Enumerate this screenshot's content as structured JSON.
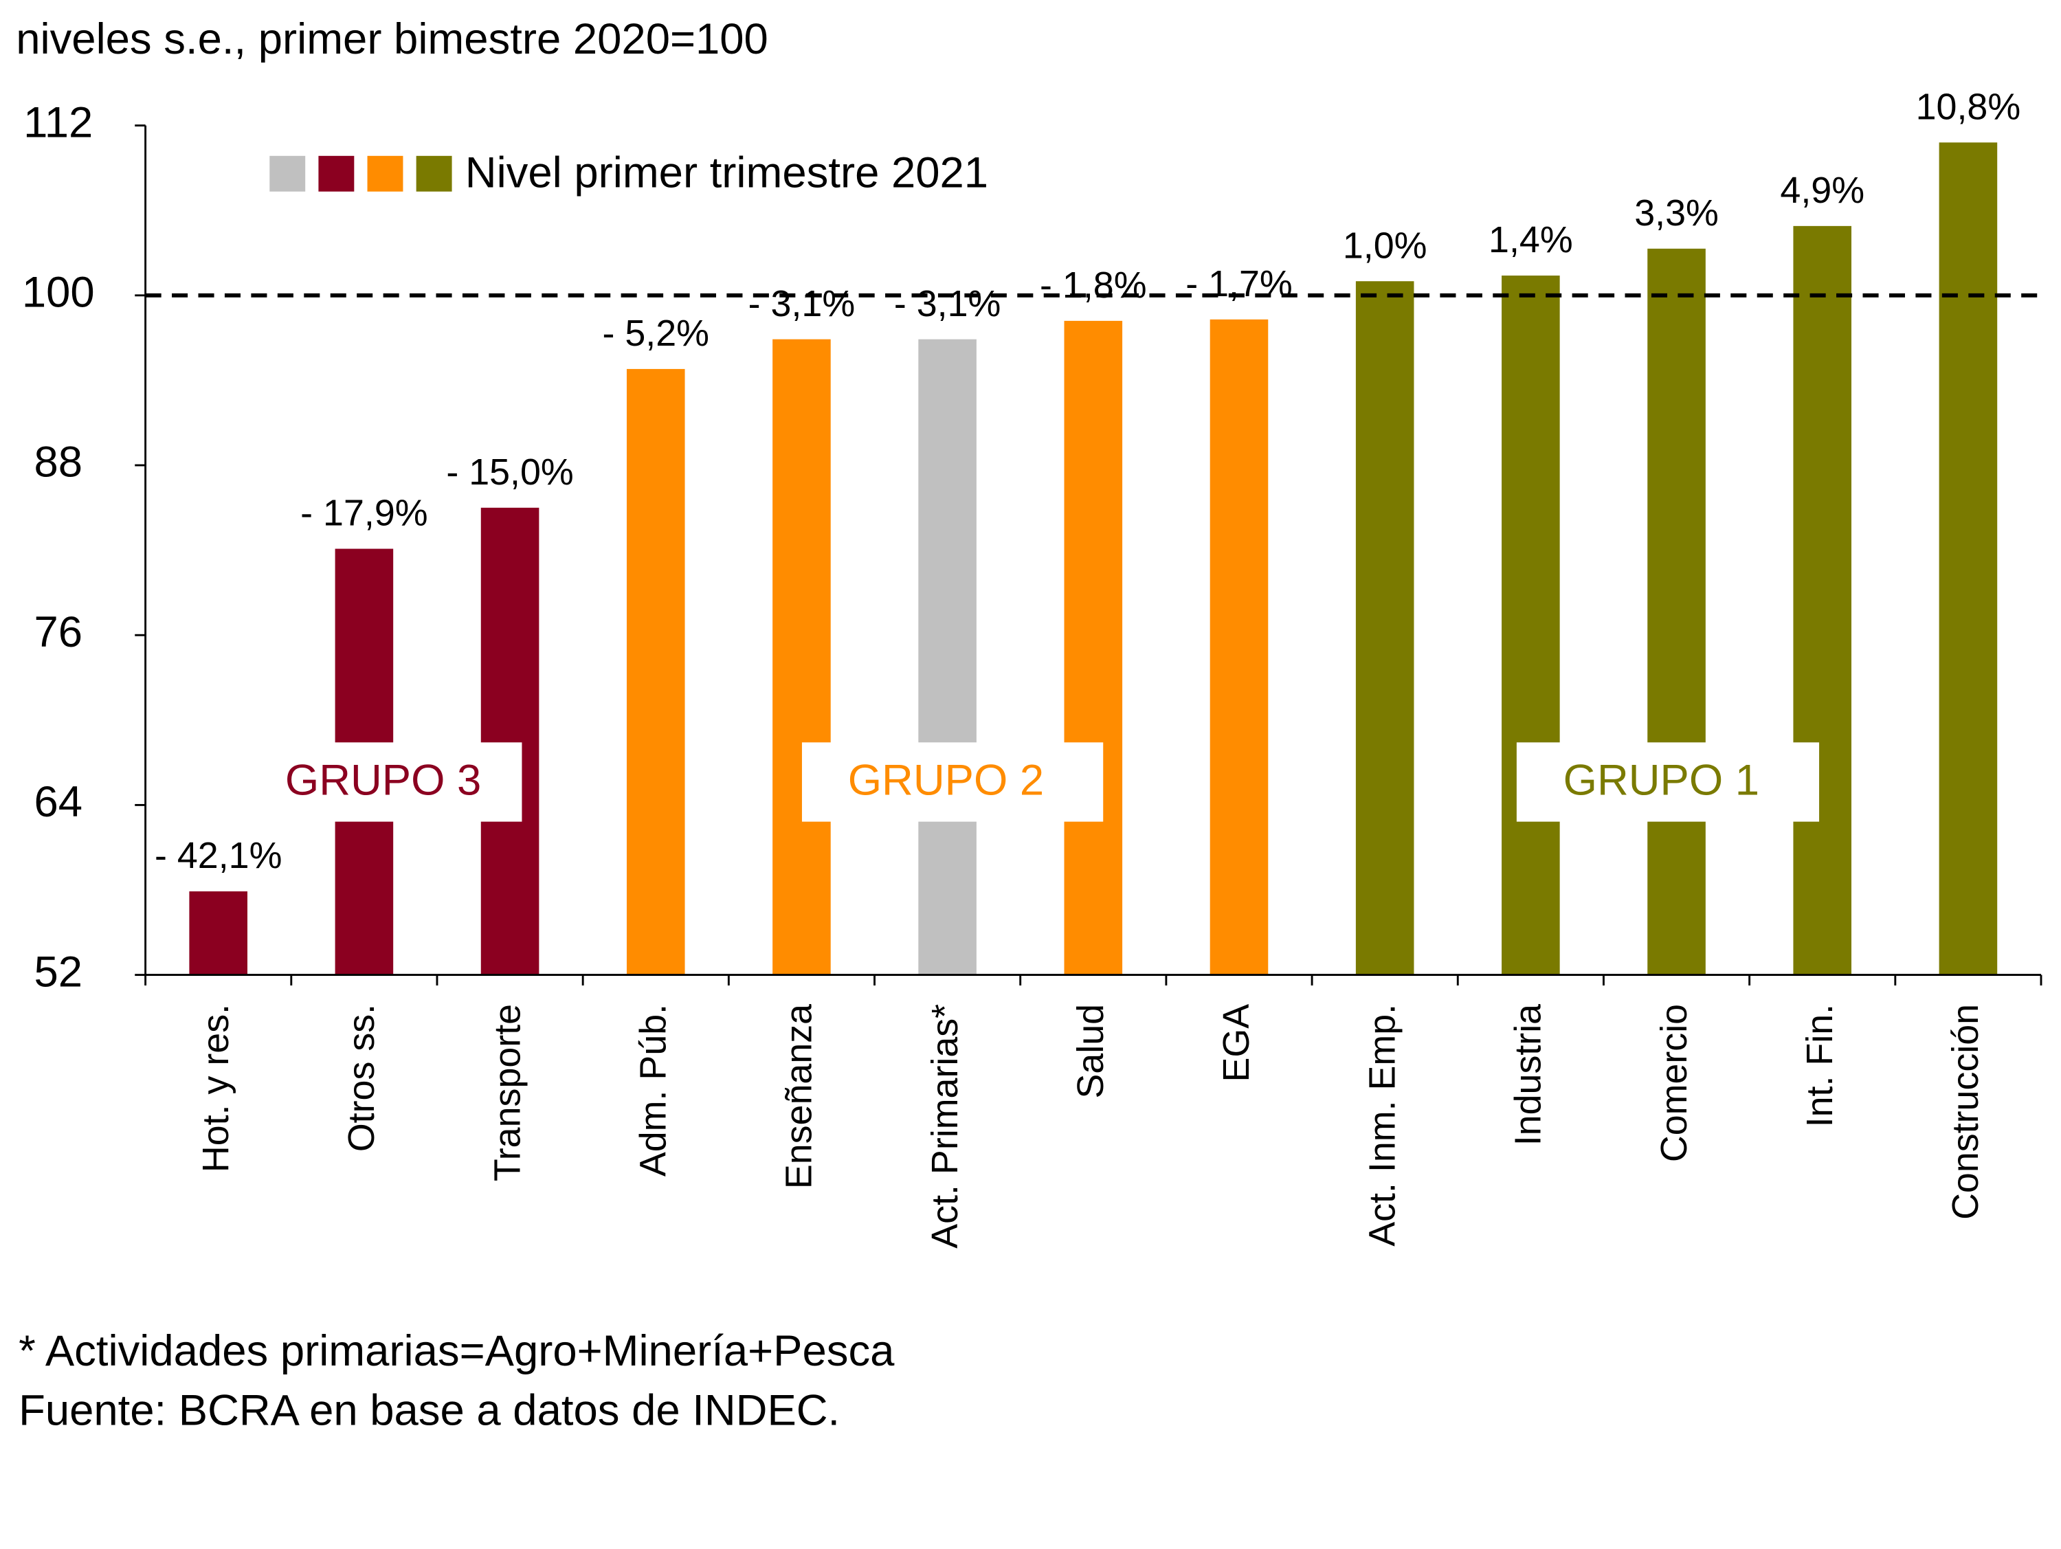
{
  "chart_data": {
    "type": "bar",
    "subtitle": "niveles s.e., primer bimestre 2020=100",
    "legend_label": "Nivel primer trimestre 2021",
    "legend_colors": [
      "#c0c0c0",
      "#8b0020",
      "#ff8c00",
      "#7a7a00"
    ],
    "categories": [
      "Hot. y res.",
      "Otros ss.",
      "Transporte",
      "Adm. Púb.",
      "Enseñanza",
      "Act. Primarias*",
      "Salud",
      "EGA",
      "Act. Inm. Emp.",
      "Industria",
      "Comercio",
      "Int. Fin.",
      "Construcción"
    ],
    "values": [
      57.9,
      82.1,
      85,
      94.8,
      96.9,
      96.9,
      98.2,
      98.3,
      101,
      101.4,
      103.3,
      104.9,
      110.8
    ],
    "colors": [
      "#8b0020",
      "#8b0020",
      "#8b0020",
      "#ff8c00",
      "#ff8c00",
      "#c0c0c0",
      "#ff8c00",
      "#ff8c00",
      "#7a7a00",
      "#7a7a00",
      "#7a7a00",
      "#7a7a00",
      "#7a7a00"
    ],
    "changes": [
      -42.1,
      -17.9,
      -15.0,
      -5.2,
      -3.1,
      -3.1,
      -1.8,
      -1.7,
      1.0,
      1.4,
      3.3,
      4.9,
      10.8
    ],
    "change_labels": [
      "- 42,1%",
      "- 17,9%",
      "- 15,0%",
      "- 5,2%",
      "- 3,1%",
      "- 3,1%",
      "- 1,8%",
      "- 1,7%",
      "1,0%",
      "1,4%",
      "3,3%",
      "4,9%",
      "10,8%"
    ],
    "reference_line": 100,
    "groups": [
      {
        "label": "GRUPO 3",
        "color": "#8b0020"
      },
      {
        "label": "GRUPO 2",
        "color": "#ff8c00"
      },
      {
        "label": "GRUPO 1",
        "color": "#7a7a00"
      }
    ],
    "ylim": [
      52,
      112
    ],
    "yticks": [
      52,
      64,
      76,
      88,
      100,
      112
    ],
    "notes": [
      "* Actividades primarias=Agro+Minería+Pesca",
      "Fuente: BCRA en base a datos de INDEC."
    ]
  }
}
